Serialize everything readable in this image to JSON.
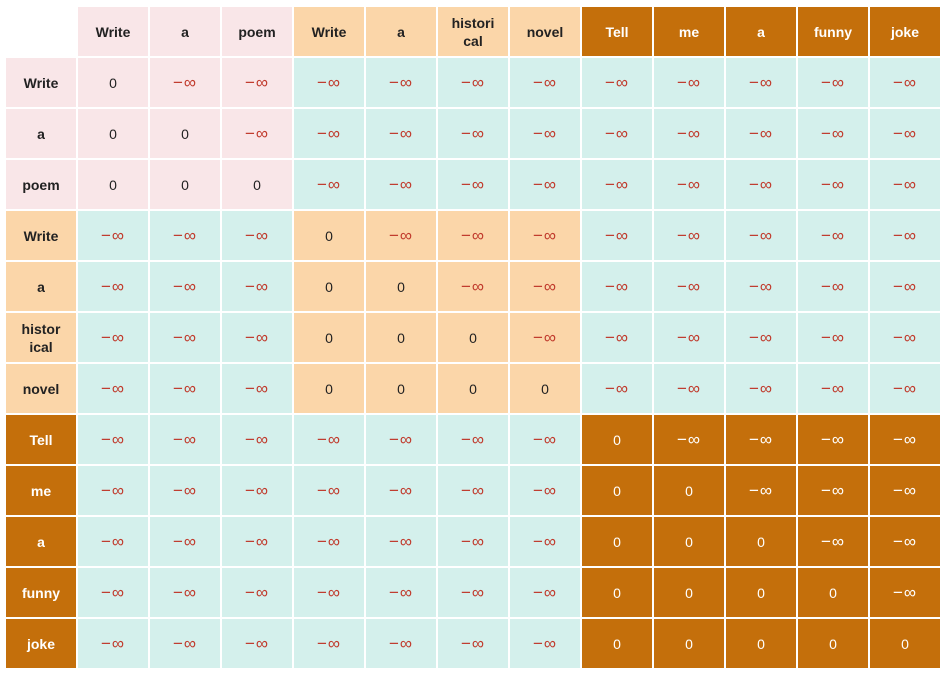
{
  "segments": [
    {
      "tokens": [
        "Write",
        "a",
        "poem"
      ],
      "color": "#f9e6e8"
    },
    {
      "tokens": [
        "Write",
        "a",
        "histori\ncal",
        "novel"
      ],
      "color": "#fbd6a9"
    },
    {
      "tokens": [
        "Tell",
        "me",
        "a",
        "funny",
        "joke"
      ],
      "color": "#c46f0b"
    }
  ],
  "col_headers": [
    "Write",
    "a",
    "poem",
    "Write",
    "a",
    "histori\ncal",
    "novel",
    "Tell",
    "me",
    "a",
    "funny",
    "joke"
  ],
  "row_headers": [
    "Write",
    "a",
    "poem",
    "Write",
    "a",
    "histor\nical",
    "novel",
    "Tell",
    "me",
    "a",
    "funny",
    "joke"
  ],
  "zero_label": "0",
  "neg_inf_label": "−∞",
  "masked_color": "#d4f0ec",
  "neg_inf_color": "#c0392b"
}
